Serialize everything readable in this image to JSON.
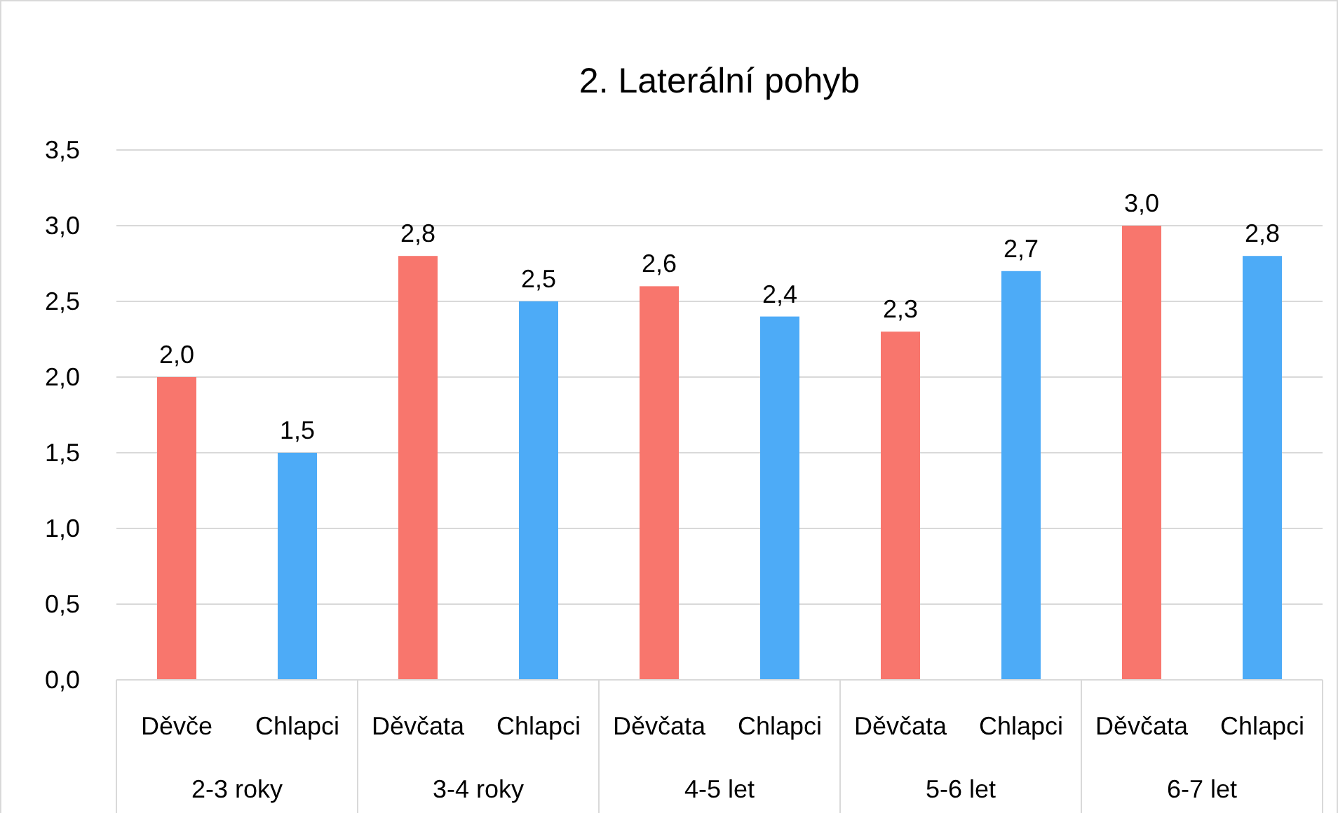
{
  "chart_data": {
    "type": "bar",
    "title": "2. Laterální pohyb",
    "categories": [
      "Děvče",
      "Chlapci",
      "Děvčata",
      "Chlapci",
      "Děvčata",
      "Chlapci",
      "Děvčata",
      "Chlapci",
      "Děvčata",
      "Chlapci"
    ],
    "values": [
      2.0,
      1.5,
      2.8,
      2.5,
      2.6,
      2.4,
      2.3,
      2.7,
      3.0,
      2.8
    ],
    "colors": [
      "#f8766d",
      "#4dabf7",
      "#f8766d",
      "#4dabf7",
      "#f8766d",
      "#4dabf7",
      "#f8766d",
      "#4dabf7",
      "#f8766d",
      "#4dabf7"
    ],
    "value_labels": [
      "2,0",
      "1,5",
      "2,8",
      "2,5",
      "2,6",
      "2,4",
      "2,3",
      "2,7",
      "3,0",
      "2,8"
    ],
    "annotations": [
      "2-3 roky",
      "3-4 roky",
      "4-5 let",
      "5-6 let",
      "6-7 let"
    ],
    "ylim": [
      0,
      3.5
    ],
    "yticks": [
      {
        "value": 0,
        "label": "0,0"
      },
      {
        "value": 0.5,
        "label": "0,5"
      },
      {
        "value": 1,
        "label": "1,0"
      },
      {
        "value": 1.5,
        "label": "1,5"
      },
      {
        "value": 2,
        "label": "2,0"
      },
      {
        "value": 2.5,
        "label": "2,5"
      },
      {
        "value": 3,
        "label": "3,0"
      },
      {
        "value": 3.5,
        "label": "3,5"
      }
    ],
    "grid": "y"
  }
}
